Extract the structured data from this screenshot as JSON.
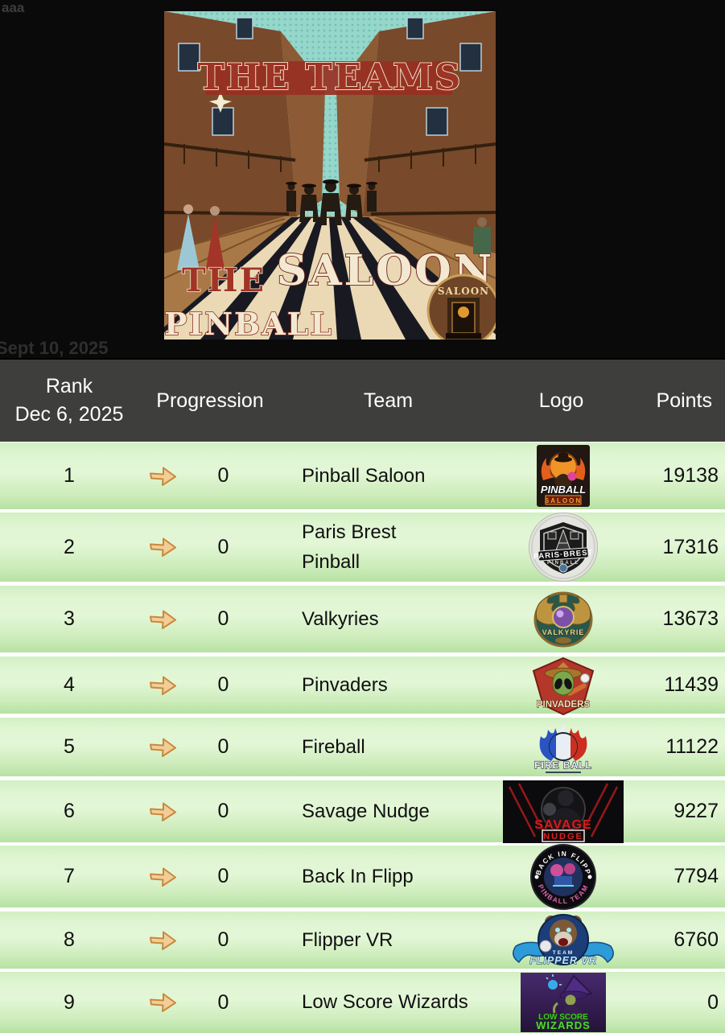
{
  "page": {
    "top_left_text": "aaa",
    "date_note": "Sept 10, 2025"
  },
  "hero": {
    "title_top": "THE TEAMS",
    "word_the": "THE",
    "word_saloon": "SALOON",
    "word_pinball": "PINBALL",
    "badge_text": "SALOON"
  },
  "table": {
    "header": {
      "rank_line1": "Rank",
      "rank_line2": "Dec 6, 2025",
      "progression": "Progression",
      "team": "Team",
      "logo": "Logo",
      "points": "Points"
    },
    "colors": {
      "header_bg": "#3e3e3c",
      "arrow_fill": "#f2cd96",
      "arrow_stroke": "#c8893e",
      "row_green_light": "#e3f7d7",
      "row_green_dark": "#b6e2a3"
    },
    "rows": [
      {
        "rank": "1",
        "progression": "0",
        "team": "Pinball Saloon",
        "points": "19138",
        "logo": {
          "type": "pinball-saloon",
          "text": [
            "PINBALL",
            "SALOON"
          ]
        }
      },
      {
        "rank": "2",
        "progression": "0",
        "team": "Paris Brest\nPinball",
        "points": "17316",
        "logo": {
          "type": "paris-brest",
          "text": [
            "PARIS·BREST",
            "PINBALL"
          ]
        }
      },
      {
        "rank": "3",
        "progression": "0",
        "team": "Valkyries",
        "points": "13673",
        "logo": {
          "type": "valkyries",
          "text": [
            "VALKYRIE"
          ]
        }
      },
      {
        "rank": "4",
        "progression": "0",
        "team": "Pinvaders",
        "points": "11439",
        "logo": {
          "type": "pinvaders",
          "text": [
            "PINVADERS"
          ]
        }
      },
      {
        "rank": "5",
        "progression": "0",
        "team": "Fireball",
        "points": "11122",
        "logo": {
          "type": "fireball",
          "text": [
            "FIRE BALL"
          ]
        }
      },
      {
        "rank": "6",
        "progression": "0",
        "team": "Savage Nudge",
        "points": "9227",
        "logo": {
          "type": "savage-nudge",
          "text": [
            "SAVAGE",
            "NUDGE"
          ]
        }
      },
      {
        "rank": "7",
        "progression": "0",
        "team": "Back In Flipp",
        "points": "7794",
        "logo": {
          "type": "back-in-flipp",
          "text": [
            "BACK IN FLIPP",
            "PINBALL TEAM"
          ]
        }
      },
      {
        "rank": "8",
        "progression": "0",
        "team": "Flipper VR",
        "points": "6760",
        "logo": {
          "type": "flipper-vr",
          "text": [
            "TEAM",
            "FLIPPER VR"
          ]
        }
      },
      {
        "rank": "9",
        "progression": "0",
        "team": "Low Score Wizards",
        "points": "0",
        "logo": {
          "type": "low-score-wizards",
          "text": [
            "LOW SCORE",
            "WIZARDS"
          ]
        }
      }
    ]
  }
}
